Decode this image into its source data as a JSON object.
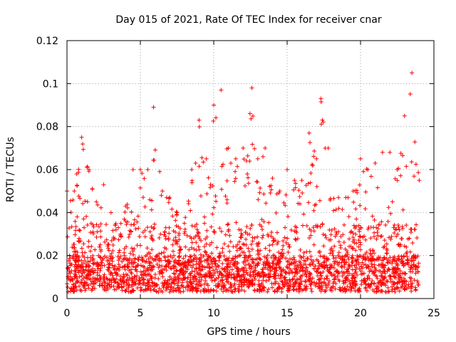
{
  "chart_data": {
    "type": "scatter",
    "title": "Day 015 of 2021, Rate Of TEC Index for receiver cnar",
    "xlabel": "GPS time / hours",
    "ylabel": "ROTI / TECUs",
    "xlim": [
      0,
      25
    ],
    "ylim": [
      0,
      0.12
    ],
    "xticks": [
      0,
      5,
      10,
      15,
      20,
      25
    ],
    "xtick_labels": [
      "0",
      "5",
      "10",
      "15",
      "20",
      "25"
    ],
    "yticks": [
      0,
      0.02,
      0.04,
      0.06,
      0.08,
      0.1,
      0.12
    ],
    "ytick_labels": [
      "0",
      "0.02",
      "0.04",
      "0.06",
      "0.08",
      "0.1",
      "0.12"
    ],
    "grid": true,
    "marker": "plus",
    "series_color": "#ff0000",
    "x_range_of_data": [
      0,
      24
    ],
    "envelope": {
      "x": [
        0,
        0.5,
        1.0,
        1.5,
        2.0,
        2.5,
        3.0,
        3.5,
        4.0,
        4.5,
        5.0,
        5.5,
        5.9,
        6.5,
        7.0,
        7.5,
        8.0,
        8.5,
        9.0,
        9.5,
        10.0,
        10.5,
        11.0,
        11.5,
        12.0,
        12.6,
        13.0,
        13.5,
        14.0,
        14.5,
        15.0,
        15.5,
        16.0,
        16.5,
        17.0,
        17.3,
        17.8,
        18.5,
        19.0,
        19.5,
        20.0,
        20.5,
        21.0,
        21.5,
        22.0,
        22.5,
        23.0,
        23.5,
        24.0
      ],
      "y": [
        0.05,
        0.05,
        0.075,
        0.06,
        0.045,
        0.053,
        0.04,
        0.033,
        0.043,
        0.06,
        0.06,
        0.06,
        0.089,
        0.05,
        0.047,
        0.04,
        0.035,
        0.06,
        0.083,
        0.065,
        0.09,
        0.097,
        0.07,
        0.065,
        0.07,
        0.098,
        0.065,
        0.07,
        0.056,
        0.05,
        0.06,
        0.055,
        0.055,
        0.077,
        0.065,
        0.093,
        0.07,
        0.047,
        0.047,
        0.05,
        0.065,
        0.06,
        0.063,
        0.068,
        0.068,
        0.06,
        0.085,
        0.105,
        0.055
      ]
    },
    "baseline_range": [
      0.003,
      0.02
    ]
  }
}
